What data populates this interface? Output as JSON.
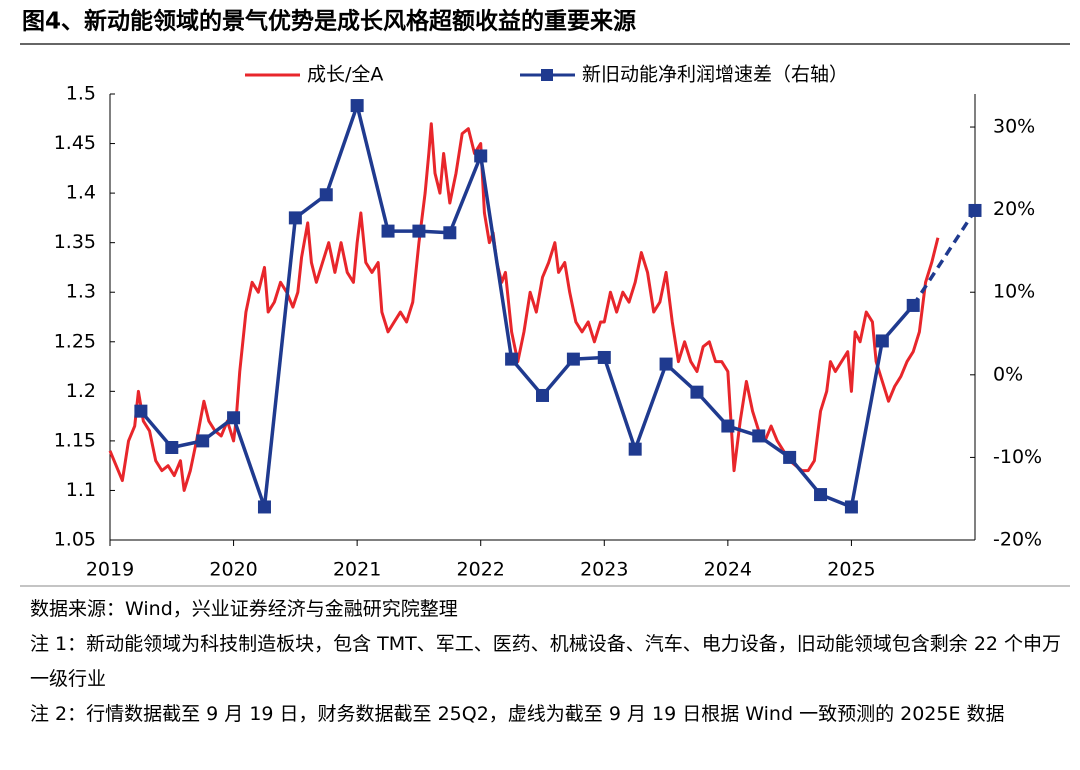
{
  "chart_data": {
    "type": "line",
    "title": "图4、新动能领域的景气优势是成长风格超额收益的重要来源",
    "xlim": [
      2019,
      2026
    ],
    "xticks": [
      2019,
      2020,
      2021,
      2022,
      2023,
      2024,
      2025
    ],
    "ylim": [
      1.05,
      1.5
    ],
    "yticks": [
      1.05,
      1.1,
      1.15,
      1.2,
      1.25,
      1.3,
      1.35,
      1.4,
      1.45,
      1.5
    ],
    "y2lim": [
      -20,
      34
    ],
    "y2ticks": [
      {
        "value": -20,
        "label": "-20%"
      },
      {
        "value": -10,
        "label": "-10%"
      },
      {
        "value": 0,
        "label": "0%"
      },
      {
        "value": 10,
        "label": "10%"
      },
      {
        "value": 20,
        "label": "20%"
      },
      {
        "value": 30,
        "label": "30%"
      }
    ],
    "series": [
      {
        "name": "成长/全A",
        "color": "#e8262b",
        "x": [
          2019.0,
          2019.05,
          2019.1,
          2019.15,
          2019.2,
          2019.23,
          2019.27,
          2019.32,
          2019.37,
          2019.42,
          2019.47,
          2019.52,
          2019.57,
          2019.6,
          2019.65,
          2019.7,
          2019.76,
          2019.8,
          2019.85,
          2019.9,
          2019.95,
          2020.0,
          2020.02,
          2020.05,
          2020.1,
          2020.15,
          2020.2,
          2020.25,
          2020.28,
          2020.33,
          2020.38,
          2020.43,
          2020.48,
          2020.52,
          2020.55,
          2020.6,
          2020.63,
          2020.67,
          2020.72,
          2020.77,
          2020.82,
          2020.87,
          2020.92,
          2020.97,
          2021.0,
          2021.03,
          2021.07,
          2021.12,
          2021.17,
          2021.2,
          2021.25,
          2021.3,
          2021.35,
          2021.4,
          2021.45,
          2021.5,
          2021.55,
          2021.58,
          2021.6,
          2021.63,
          2021.67,
          2021.7,
          2021.75,
          2021.8,
          2021.85,
          2021.9,
          2021.95,
          2022.0,
          2022.03,
          2022.07,
          2022.1,
          2022.13,
          2022.17,
          2022.2,
          2022.25,
          2022.3,
          2022.35,
          2022.4,
          2022.45,
          2022.5,
          2022.55,
          2022.6,
          2022.63,
          2022.68,
          2022.72,
          2022.77,
          2022.82,
          2022.87,
          2022.92,
          2022.97,
          2023.0,
          2023.05,
          2023.1,
          2023.15,
          2023.2,
          2023.25,
          2023.3,
          2023.35,
          2023.4,
          2023.45,
          2023.5,
          2023.55,
          2023.6,
          2023.65,
          2023.7,
          2023.75,
          2023.8,
          2023.85,
          2023.9,
          2023.95,
          2024.0,
          2024.05,
          2024.1,
          2024.15,
          2024.2,
          2024.25,
          2024.3,
          2024.35,
          2024.4,
          2024.45,
          2024.5,
          2024.55,
          2024.6,
          2024.65,
          2024.7,
          2024.75,
          2024.8,
          2024.83,
          2024.87,
          2024.92,
          2024.97,
          2025.0,
          2025.03,
          2025.07,
          2025.12,
          2025.17,
          2025.2,
          2025.25,
          2025.3,
          2025.35,
          2025.4,
          2025.45,
          2025.5,
          2025.55,
          2025.6,
          2025.65,
          2025.7
        ],
        "values": [
          1.14,
          1.125,
          1.11,
          1.15,
          1.165,
          1.2,
          1.17,
          1.16,
          1.13,
          1.12,
          1.125,
          1.115,
          1.13,
          1.1,
          1.12,
          1.15,
          1.19,
          1.17,
          1.16,
          1.155,
          1.17,
          1.15,
          1.17,
          1.22,
          1.28,
          1.31,
          1.3,
          1.325,
          1.28,
          1.29,
          1.31,
          1.3,
          1.285,
          1.3,
          1.335,
          1.37,
          1.33,
          1.31,
          1.33,
          1.35,
          1.32,
          1.35,
          1.32,
          1.31,
          1.35,
          1.38,
          1.33,
          1.32,
          1.33,
          1.28,
          1.26,
          1.27,
          1.28,
          1.27,
          1.29,
          1.35,
          1.4,
          1.44,
          1.47,
          1.42,
          1.4,
          1.44,
          1.39,
          1.42,
          1.46,
          1.465,
          1.44,
          1.45,
          1.38,
          1.35,
          1.36,
          1.33,
          1.31,
          1.32,
          1.26,
          1.23,
          1.26,
          1.3,
          1.28,
          1.315,
          1.33,
          1.35,
          1.32,
          1.33,
          1.3,
          1.27,
          1.26,
          1.27,
          1.25,
          1.27,
          1.27,
          1.3,
          1.28,
          1.3,
          1.29,
          1.31,
          1.34,
          1.32,
          1.28,
          1.29,
          1.32,
          1.27,
          1.23,
          1.25,
          1.23,
          1.22,
          1.245,
          1.25,
          1.23,
          1.23,
          1.22,
          1.12,
          1.17,
          1.21,
          1.18,
          1.16,
          1.15,
          1.165,
          1.15,
          1.14,
          1.13,
          1.125,
          1.12,
          1.12,
          1.13,
          1.18,
          1.2,
          1.23,
          1.22,
          1.23,
          1.24,
          1.2,
          1.26,
          1.25,
          1.28,
          1.27,
          1.23,
          1.21,
          1.19,
          1.205,
          1.215,
          1.23,
          1.24,
          1.26,
          1.31,
          1.33,
          1.355
        ]
      },
      {
        "name": "新旧动能净利润增速差（右轴）",
        "color": "#1f3a8f",
        "axis": "y2",
        "marker": "square",
        "dashed_last_segment": true,
        "x": [
          2019.25,
          2019.5,
          2019.75,
          2020.0,
          2020.25,
          2020.5,
          2020.75,
          2021.0,
          2021.25,
          2021.5,
          2021.75,
          2022.0,
          2022.25,
          2022.5,
          2022.75,
          2023.0,
          2023.25,
          2023.5,
          2023.75,
          2024.0,
          2024.25,
          2024.5,
          2024.75,
          2025.0,
          2025.25,
          2025.5,
          2026.0
        ],
        "values": [
          -4.4,
          -8.8,
          -8,
          -5.2,
          -16,
          19,
          21.8,
          32.6,
          17.4,
          17.4,
          17.2,
          26.5,
          1.9,
          -2.5,
          1.9,
          2.1,
          -9,
          1.3,
          -2.1,
          -6.2,
          -7.4,
          -10,
          -14.5,
          -16,
          4.1,
          8.4,
          19.9
        ]
      }
    ]
  },
  "notes": {
    "source": "数据来源：Wind，兴业证券经济与金融研究院整理",
    "note1": "注 1：新动能领域为科技制造板块，包含 TMT、军工、医药、机械设备、汽车、电力设备，旧动能领域包含剩余 22 个申万一级行业",
    "note2": "注 2：行情数据截至 9 月 19 日，财务数据截至 25Q2，虚线为截至 9 月 19 日根据 Wind 一致预测的 2025E 数据"
  }
}
